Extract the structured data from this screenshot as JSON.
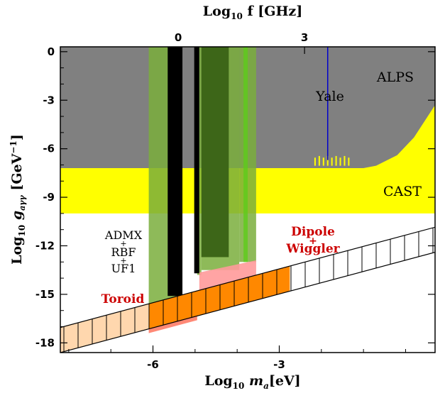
{
  "chart_data": {
    "type": "area",
    "title": "",
    "xlabel_bottom": {
      "prefix": "Log",
      "sub": "10",
      "var": "m",
      "varsub": "a",
      "unit": "[eV]"
    },
    "xlabel_top": {
      "prefix": "Log",
      "sub": "10",
      "rest": "f [GHz]"
    },
    "ylabel": {
      "prefix": "Log",
      "sub": "10",
      "var": "g",
      "varsub": "aγγ",
      "unit": "[GeV",
      "exp": "−1",
      "close": "]"
    },
    "xlim": [
      -8.2,
      0.7
    ],
    "ylim": [
      -18.6,
      0.3
    ],
    "x_ticks": [
      "-6",
      "-3"
    ],
    "x_tick_values": [
      -6,
      -3
    ],
    "x_top_ticks": [
      "0",
      "3"
    ],
    "x_top_tick_values": [
      0,
      3
    ],
    "y_ticks": [
      "0",
      "-3",
      "-6",
      "-9",
      "-12",
      "-15",
      "-18"
    ],
    "y_tick_values": [
      0,
      -3,
      -6,
      -9,
      -12,
      -15,
      -18
    ],
    "colors": {
      "alps": "#808080",
      "cast": "#ffff00",
      "haloscope_green": "#7aae3c",
      "haloscope_dark": "#3d6618",
      "admx_black": "#000000",
      "toroid_red": "#ff3b1a",
      "dipole_pink": "#ff9a9a",
      "band_orange": "#ff8800",
      "band_peach": "#ffd7ae",
      "yale_line": "#0000cc",
      "dipole_label": "#cc0000"
    },
    "regions": [
      {
        "name": "ALPS",
        "y_bottom": -7.2,
        "y_top": 0.3
      },
      {
        "name": "CAST",
        "y_bottom": -10.0,
        "y_top": -7.2
      },
      {
        "name": "Yale",
        "x": -1.85,
        "y_bottom": -6.7,
        "y_top": 0.3
      }
    ],
    "cast_edge": [
      [
        -1.0,
        -7.2
      ],
      [
        -0.7,
        -7.05
      ],
      [
        -0.2,
        -6.4
      ],
      [
        0.2,
        -5.3
      ],
      [
        0.7,
        -3.3
      ]
    ],
    "green_bands": [
      {
        "x0": -6.1,
        "x1": -5.45,
        "y_bottom": -16.1,
        "y_top": 0.3
      },
      {
        "x0": -4.95,
        "x1": -4.85,
        "y_bottom": -13.8,
        "y_top": 0.3
      },
      {
        "x0": -4.85,
        "x1": -3.95,
        "y_bottom": -13.5,
        "y_top": 0.3
      },
      {
        "x0": -3.95,
        "x1": -3.55,
        "y_bottom": -13.0,
        "y_top": 0.3
      }
    ],
    "dark_green_bands": [
      {
        "x0": -4.85,
        "x1": -4.2,
        "y_bottom": -12.7,
        "y_top": 0.3
      }
    ],
    "admx_bars": [
      {
        "x0": -5.65,
        "x1": -5.3,
        "y_bottom": -15.1,
        "y_top": 0.3
      },
      {
        "x0": -5.02,
        "x1": -4.9,
        "y_bottom": -13.7,
        "y_top": 0.3
      }
    ],
    "projections": {
      "toroid_red": [
        [
          -6.1,
          -17.4
        ],
        [
          -4.95,
          -16.6
        ],
        [
          -4.95,
          -14.9
        ],
        [
          -6.1,
          -15.7
        ]
      ],
      "dipole_pink": [
        [
          -4.9,
          -14.85
        ],
        [
          -3.55,
          -13.9
        ],
        [
          -3.55,
          -12.9
        ],
        [
          -4.9,
          -13.65
        ]
      ]
    },
    "theory_band": {
      "lower": [
        [
          -8.2,
          -18.6
        ],
        [
          0.7,
          -12.4
        ]
      ],
      "upper": [
        [
          -8.2,
          -17.05
        ],
        [
          0.7,
          -10.85
        ]
      ],
      "hatched": true,
      "orange_range": [
        -6.1,
        -2.75
      ],
      "peach_range": [
        -8.2,
        -6.1
      ]
    },
    "labels": {
      "alps": "ALPS",
      "yale": "Yale",
      "cast": "CAST",
      "admx": [
        "ADMX",
        "+",
        "RBF",
        "+",
        "UF1"
      ],
      "toroid": "Toroid",
      "dipole": "Dipole",
      "plus": "+",
      "wiggler": "Wiggler"
    }
  }
}
